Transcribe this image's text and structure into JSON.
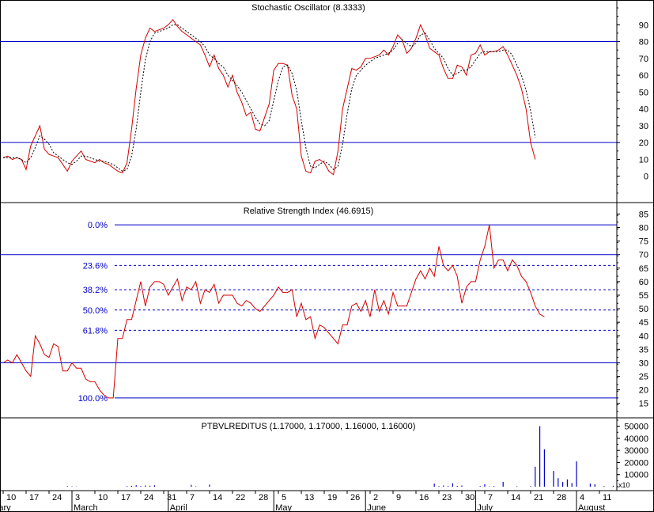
{
  "chart_data": [
    {
      "type": "line",
      "title": "Stochastic Oscillator (8.3333)",
      "ylim": [
        -10,
        100
      ],
      "yticks": [
        0,
        10,
        20,
        30,
        40,
        50,
        60,
        70,
        80,
        90
      ],
      "hlines": [
        80,
        20
      ],
      "series": [
        {
          "style": "solid",
          "color": "#d40000",
          "values": [
            11,
            12,
            10,
            11,
            10,
            4,
            18,
            24,
            30,
            16,
            13,
            12,
            11,
            7,
            3,
            9,
            12,
            15,
            10,
            9,
            8,
            10,
            8,
            7,
            5,
            3,
            2,
            8,
            28,
            52,
            72,
            82,
            88,
            86,
            87,
            88,
            90,
            93,
            89,
            86,
            84,
            82,
            80,
            78,
            72,
            65,
            72,
            64,
            60,
            53,
            60,
            50,
            44,
            36,
            38,
            28,
            27,
            35,
            43,
            63,
            67,
            67,
            66,
            48,
            40,
            12,
            3,
            2,
            9,
            10,
            8,
            3,
            1,
            15,
            40,
            52,
            64,
            63,
            65,
            70,
            70,
            71,
            72,
            75,
            72,
            77,
            84,
            81,
            73,
            76,
            82,
            90,
            84,
            76,
            74,
            72,
            64,
            58,
            58,
            66,
            65,
            60,
            72,
            73,
            78,
            72,
            74,
            74,
            75,
            77,
            72,
            66,
            60,
            52,
            40,
            20,
            10
          ]
        },
        {
          "style": "dashed",
          "color": "#000000",
          "values": [
            11,
            11,
            11,
            11,
            10,
            8,
            11,
            17,
            24,
            22,
            19,
            14,
            12,
            10,
            8,
            7,
            9,
            12,
            12,
            11,
            10,
            9,
            9,
            8,
            7,
            5,
            3,
            4,
            12,
            28,
            50,
            69,
            80,
            85,
            86,
            87,
            88,
            90,
            90,
            88,
            86,
            84,
            82,
            80,
            77,
            72,
            70,
            67,
            65,
            60,
            57,
            54,
            50,
            45,
            40,
            35,
            31,
            30,
            33,
            45,
            57,
            65,
            66,
            61,
            51,
            33,
            17,
            6,
            5,
            7,
            9,
            7,
            4,
            6,
            19,
            37,
            52,
            60,
            63,
            66,
            68,
            70,
            71,
            72,
            73,
            75,
            79,
            81,
            79,
            77,
            79,
            84,
            85,
            81,
            76,
            73,
            70,
            64,
            60,
            61,
            63,
            63,
            65,
            69,
            73,
            74,
            74,
            74,
            74,
            75,
            75,
            72,
            66,
            60,
            51,
            39,
            23
          ]
        }
      ]
    },
    {
      "type": "line",
      "title": "Relative Strength Index (46.6915)",
      "ylim": [
        12,
        86
      ],
      "yticks": [
        15,
        20,
        25,
        30,
        35,
        40,
        45,
        50,
        55,
        60,
        65,
        70,
        75,
        80,
        85
      ],
      "hlines": [
        70,
        30
      ],
      "fib_levels": [
        {
          "label": "0.0%",
          "value": 81
        },
        {
          "label": "23.6%",
          "value": 66
        },
        {
          "label": "38.2%",
          "value": 57
        },
        {
          "label": "50.0%",
          "value": 49.5
        },
        {
          "label": "61.8%",
          "value": 42
        },
        {
          "label": "100.0%",
          "value": 17
        }
      ],
      "series": [
        {
          "style": "solid",
          "color": "#d40000",
          "values": [
            30,
            31,
            30,
            33,
            30,
            27,
            25,
            40,
            37,
            33,
            32,
            37,
            36,
            27,
            27,
            30,
            28,
            28,
            24,
            23,
            23,
            20,
            18,
            17,
            17,
            39,
            39,
            46,
            46,
            53,
            60,
            51,
            58,
            60,
            60,
            59,
            55,
            58,
            61,
            53,
            58,
            57,
            60,
            52,
            57,
            56,
            59,
            52,
            55,
            55,
            55,
            52,
            51,
            53,
            52,
            50,
            49,
            51,
            53,
            55,
            58,
            56,
            56,
            57,
            47,
            52,
            46,
            47,
            39,
            44,
            43,
            41,
            39,
            37,
            44,
            44,
            51,
            52,
            49,
            53,
            47,
            57,
            49,
            53,
            48,
            56,
            51,
            51,
            51,
            56,
            61,
            64,
            61,
            65,
            62,
            73,
            66,
            64,
            66,
            62,
            52,
            58,
            60,
            60,
            68,
            73,
            81,
            65,
            68,
            68,
            64,
            68,
            66,
            62,
            60,
            56,
            51,
            48,
            47
          ]
        }
      ]
    },
    {
      "type": "bar",
      "title": "PTBVLREDITUS (1.17000, 1.17000, 1.16000, 1.16000)",
      "ylim": [
        0,
        55000
      ],
      "yticks": [
        10000,
        20000,
        30000,
        40000,
        50000
      ],
      "unit_label": "x10",
      "values": [
        0,
        0,
        0,
        0,
        0,
        0,
        0,
        0,
        0,
        0,
        0,
        0,
        0,
        0,
        500,
        300,
        200,
        0,
        0,
        0,
        0,
        0,
        0,
        0,
        0,
        0,
        0,
        500,
        700,
        1200,
        600,
        1000,
        800,
        1200,
        0,
        0,
        0,
        0,
        0,
        0,
        0,
        1500,
        300,
        0,
        0,
        1700,
        0,
        0,
        0,
        0,
        0,
        0,
        0,
        0,
        0,
        0,
        0,
        0,
        0,
        0,
        0,
        0,
        0,
        0,
        0,
        0,
        0,
        0,
        0,
        0,
        0,
        0,
        0,
        0,
        0,
        0,
        0,
        0,
        0,
        0,
        0,
        0,
        0,
        0,
        0,
        0,
        0,
        0,
        0,
        0,
        0,
        0,
        0,
        0,
        2500,
        500,
        1000,
        600,
        2800,
        700,
        1000,
        0,
        0,
        0,
        600,
        2000,
        300,
        500,
        0,
        4000,
        0,
        0,
        400,
        0,
        0,
        600,
        16500,
        50000,
        31000,
        0,
        13000,
        7000,
        4000,
        6000,
        3000,
        21000,
        0,
        0,
        2500,
        2000,
        0,
        600,
        0,
        800,
        0,
        0,
        0
      ],
      "x_tick_labels": [
        {
          "label": "10",
          "idx": 0
        },
        {
          "label": "17",
          "idx": 5
        },
        {
          "label": "24",
          "idx": 10
        },
        {
          "label": "3",
          "idx": 15
        },
        {
          "label": "10",
          "idx": 20
        },
        {
          "label": "17",
          "idx": 25
        },
        {
          "label": "24",
          "idx": 30
        },
        {
          "label": "31",
          "idx": 35
        },
        {
          "label": "7",
          "idx": 40
        },
        {
          "label": "14",
          "idx": 45
        },
        {
          "label": "22",
          "idx": 50
        },
        {
          "label": "28",
          "idx": 55
        },
        {
          "label": "5",
          "idx": 60
        },
        {
          "label": "13",
          "idx": 65
        },
        {
          "label": "19",
          "idx": 70
        },
        {
          "label": "26",
          "idx": 75
        },
        {
          "label": "2",
          "idx": 80
        },
        {
          "label": "9",
          "idx": 85
        },
        {
          "label": "16",
          "idx": 90
        },
        {
          "label": "23",
          "idx": 95
        },
        {
          "label": "30",
          "idx": 100
        },
        {
          "label": "7",
          "idx": 105
        },
        {
          "label": "14",
          "idx": 110
        },
        {
          "label": "21",
          "idx": 115
        },
        {
          "label": "28",
          "idx": 120
        },
        {
          "label": "4",
          "idx": 125
        },
        {
          "label": "11",
          "idx": 130
        }
      ],
      "month_labels": [
        {
          "label": "ruary",
          "idx": -3
        },
        {
          "label": "March",
          "idx": 15
        },
        {
          "label": "April",
          "idx": 36
        },
        {
          "label": "May",
          "idx": 59
        },
        {
          "label": "June",
          "idx": 79
        },
        {
          "label": "July",
          "idx": 103
        },
        {
          "label": "August",
          "idx": 125
        }
      ]
    }
  ]
}
